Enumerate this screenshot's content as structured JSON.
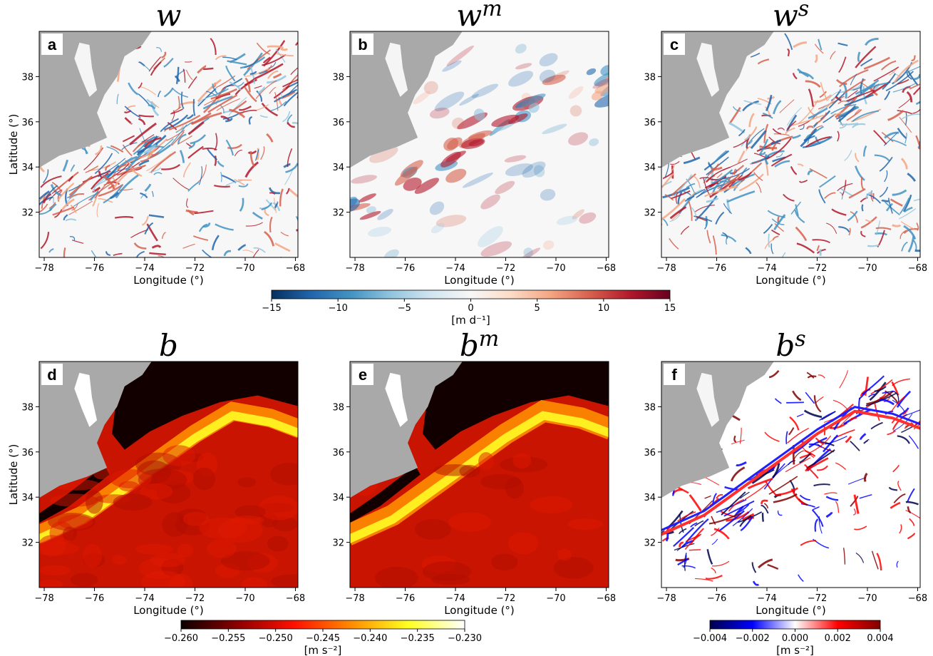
{
  "chart_data": [
    {
      "type": "heatmap",
      "title": {
        "base": "w"
      },
      "label": "a",
      "xlabel": "Longitude (°)",
      "ylabel": "Latitude (°)",
      "colorbar": 0,
      "xlim": [
        -78.2,
        -67.9
      ],
      "ylim": [
        30,
        40
      ],
      "xticks": [
        {
          "value": -78,
          "label": "−78"
        },
        {
          "value": -76,
          "label": "−76"
        },
        {
          "value": -74,
          "label": "−74"
        },
        {
          "value": -72,
          "label": "−72"
        },
        {
          "value": -70,
          "label": "−70"
        },
        {
          "value": -68,
          "label": "−68"
        }
      ],
      "yticks": [
        32,
        34,
        36,
        38
      ]
    },
    {
      "type": "heatmap",
      "title": {
        "base": "w",
        "sup": "m"
      },
      "label": "b",
      "xlabel": "Longitude (°)",
      "colorbar": 0,
      "xlim": [
        -78.2,
        -67.9
      ],
      "ylim": [
        30,
        40
      ],
      "xticks": [
        {
          "value": -78,
          "label": "−78"
        },
        {
          "value": -76,
          "label": "−76"
        },
        {
          "value": -74,
          "label": "−74"
        },
        {
          "value": -72,
          "label": "−72"
        },
        {
          "value": -70,
          "label": "−70"
        },
        {
          "value": -68,
          "label": "−68"
        }
      ],
      "yticks": [
        32,
        34,
        36,
        38
      ]
    },
    {
      "type": "heatmap",
      "title": {
        "base": "w",
        "sup": "s"
      },
      "label": "c",
      "xlabel": "Longitude (°)",
      "colorbar": 0,
      "xlim": [
        -78.2,
        -67.9
      ],
      "ylim": [
        30,
        40
      ],
      "xticks": [
        {
          "value": -78,
          "label": "−78"
        },
        {
          "value": -76,
          "label": "−76"
        },
        {
          "value": -74,
          "label": "−74"
        },
        {
          "value": -72,
          "label": "−72"
        },
        {
          "value": -70,
          "label": "−70"
        },
        {
          "value": -68,
          "label": "−68"
        }
      ],
      "yticks": [
        32,
        34,
        36,
        38
      ]
    },
    {
      "type": "heatmap",
      "title": {
        "base": "b"
      },
      "label": "d",
      "xlabel": "Longitude (°)",
      "ylabel": "Latitude (°)",
      "colorbar": 1,
      "xlim": [
        -78.2,
        -67.9
      ],
      "ylim": [
        30,
        40
      ],
      "xticks": [
        {
          "value": -78,
          "label": "−78"
        },
        {
          "value": -76,
          "label": "−76"
        },
        {
          "value": -74,
          "label": "−74"
        },
        {
          "value": -72,
          "label": "−72"
        },
        {
          "value": -70,
          "label": "−70"
        },
        {
          "value": -68,
          "label": "−68"
        }
      ],
      "yticks": [
        32,
        34,
        36,
        38
      ]
    },
    {
      "type": "heatmap",
      "title": {
        "base": "b",
        "sup": "m"
      },
      "label": "e",
      "xlabel": "Longitude (°)",
      "colorbar": 1,
      "xlim": [
        -78.2,
        -67.9
      ],
      "ylim": [
        30,
        40
      ],
      "xticks": [
        {
          "value": -78,
          "label": "−78"
        },
        {
          "value": -76,
          "label": "−76"
        },
        {
          "value": -74,
          "label": "−74"
        },
        {
          "value": -72,
          "label": "−72"
        },
        {
          "value": -70,
          "label": "−70"
        },
        {
          "value": -68,
          "label": "−68"
        }
      ],
      "yticks": [
        32,
        34,
        36,
        38
      ]
    },
    {
      "type": "heatmap",
      "title": {
        "base": "b",
        "sup": "s"
      },
      "label": "f",
      "xlabel": "Longitude (°)",
      "colorbar": 2,
      "xlim": [
        -78.2,
        -67.9
      ],
      "ylim": [
        30,
        40
      ],
      "xticks": [
        {
          "value": -78,
          "label": "−78"
        },
        {
          "value": -76,
          "label": "−76"
        },
        {
          "value": -74,
          "label": "−74"
        },
        {
          "value": -72,
          "label": "−72"
        },
        {
          "value": -70,
          "label": "−70"
        },
        {
          "value": -68,
          "label": "−68"
        }
      ],
      "yticks": [
        32,
        34,
        36,
        38
      ]
    }
  ],
  "colorbars": [
    {
      "label": "[m d⁻¹]",
      "lim": [
        -15,
        15
      ],
      "ticks": [
        {
          "value": -15,
          "label": "−15"
        },
        {
          "value": -10,
          "label": "−10"
        },
        {
          "value": -5,
          "label": "−5"
        },
        0,
        5,
        10,
        15
      ],
      "colors": [
        "#053061",
        "#2166ac",
        "#4393c3",
        "#92c5de",
        "#d1e5f0",
        "#f7f7f7",
        "#fddbc7",
        "#f4a582",
        "#d6604d",
        "#b2182b",
        "#67001f"
      ]
    },
    {
      "label": "[m s⁻²]",
      "lim": [
        -0.26,
        -0.23
      ],
      "ticks": [
        {
          "value": -0.26,
          "label": "−0.260"
        },
        {
          "value": -0.255,
          "label": "−0.255"
        },
        {
          "value": -0.25,
          "label": "−0.250"
        },
        {
          "value": -0.245,
          "label": "−0.245"
        },
        {
          "value": -0.24,
          "label": "−0.240"
        },
        {
          "value": -0.235,
          "label": "−0.235"
        },
        {
          "value": -0.23,
          "label": "−0.230"
        }
      ],
      "colors": [
        "#0b0000",
        "#8c0000",
        "#ff1000",
        "#ff8c00",
        "#ffff20",
        "#ffffff"
      ]
    },
    {
      "label": "[m s⁻²]",
      "lim": [
        -0.004,
        0.004
      ],
      "ticks": [
        {
          "value": -0.004,
          "label": "−0.004"
        },
        {
          "value": -0.002,
          "label": "−0.002"
        },
        {
          "value": 0,
          "label": "0.000"
        },
        {
          "value": 0.002,
          "label": "0.002"
        },
        {
          "value": 0.004,
          "label": "0.004"
        }
      ],
      "colors": [
        "#00004c",
        "#0000ff",
        "#ffffff",
        "#ff0000",
        "#800000"
      ]
    }
  ]
}
